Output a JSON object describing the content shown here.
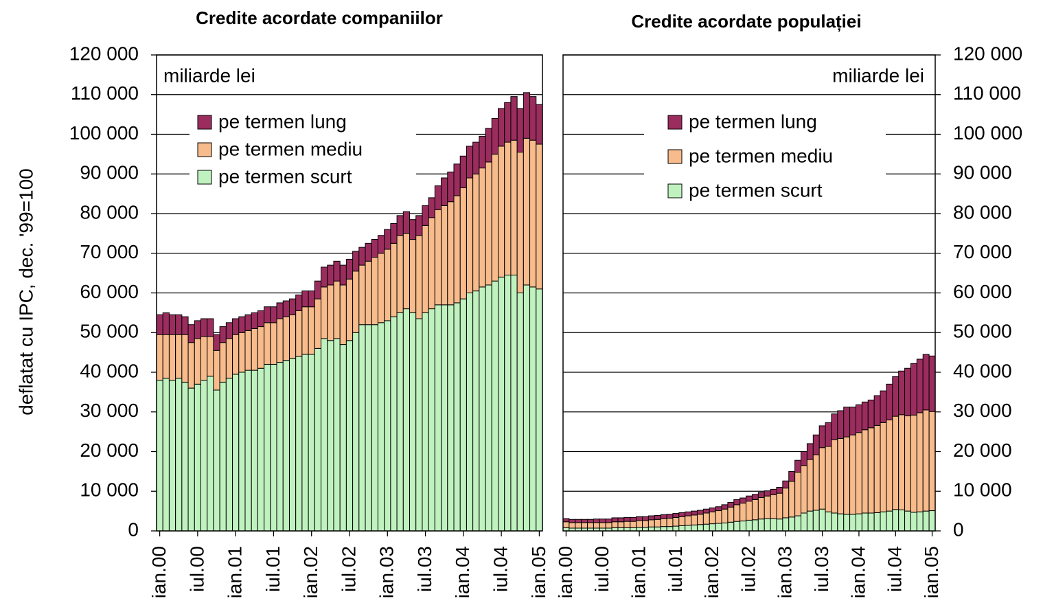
{
  "chart_data": [
    {
      "type": "bar",
      "stacked": true,
      "title": "Credite acordate companiilor",
      "y_axis_label": "deflatat cu IPC, dec. '99=100",
      "annotation": "miliarde lei",
      "axis_side": "left",
      "grid": true,
      "categories": [
        "ian.00",
        null,
        null,
        null,
        null,
        null,
        "iul.00",
        null,
        null,
        null,
        null,
        null,
        "ian.01",
        null,
        null,
        null,
        null,
        null,
        "iul.01",
        null,
        null,
        null,
        null,
        null,
        "ian.02",
        null,
        null,
        null,
        null,
        null,
        "iul.02",
        null,
        null,
        null,
        null,
        null,
        "ian.03",
        null,
        null,
        null,
        null,
        null,
        "iul.03",
        null,
        null,
        null,
        null,
        null,
        "ian.04",
        null,
        null,
        null,
        null,
        null,
        "iul.04",
        null,
        null,
        null,
        null,
        null,
        "ian.05"
      ],
      "ylim": [
        0,
        120000
      ],
      "yticks": [
        0,
        {
          "value": 10000,
          "label": "10 000"
        },
        {
          "value": 20000,
          "label": "20 000"
        },
        {
          "value": 30000,
          "label": "30 000"
        },
        {
          "value": 40000,
          "label": "40 000"
        },
        {
          "value": 50000,
          "label": "50 000"
        },
        {
          "value": 60000,
          "label": "60 000"
        },
        {
          "value": 70000,
          "label": "70 000"
        },
        {
          "value": 80000,
          "label": "80 000"
        },
        {
          "value": 90000,
          "label": "90 000"
        },
        {
          "value": 100000,
          "label": "100 000"
        },
        {
          "value": 110000,
          "label": "110 000"
        },
        {
          "value": 120000,
          "label": "120 000"
        }
      ],
      "series": [
        {
          "name": "pe termen scurt",
          "color": "#bff2bf",
          "values": [
            38000,
            38500,
            38000,
            38500,
            37500,
            36000,
            37000,
            38000,
            39000,
            35500,
            37500,
            38500,
            39500,
            40000,
            40500,
            40500,
            41000,
            42000,
            42000,
            42500,
            43000,
            43500,
            44000,
            44500,
            44500,
            46000,
            48500,
            48000,
            48500,
            47000,
            48000,
            50000,
            52000,
            52000,
            52000,
            52500,
            53000,
            54000,
            55000,
            56000,
            55000,
            53500,
            55000,
            56000,
            57000,
            57000,
            57000,
            57500,
            58500,
            60000,
            60500,
            61500,
            62000,
            63000,
            64000,
            64500,
            64500,
            60000,
            62000,
            61500,
            61000
          ]
        },
        {
          "name": "pe termen mediu",
          "color": "#f7bb8c",
          "values": [
            11500,
            11000,
            11500,
            11000,
            12000,
            11500,
            11500,
            11000,
            10000,
            10000,
            10000,
            10000,
            10000,
            10000,
            10000,
            10500,
            10500,
            10500,
            10500,
            11000,
            11000,
            11000,
            11500,
            12000,
            12000,
            12500,
            13000,
            14000,
            14500,
            15000,
            15500,
            15500,
            15000,
            16000,
            17000,
            17500,
            18000,
            18500,
            19500,
            19000,
            18500,
            21000,
            22000,
            23000,
            24000,
            25000,
            26000,
            27000,
            28000,
            29000,
            29500,
            30000,
            31000,
            32000,
            33000,
            33500,
            34000,
            35500,
            37000,
            37000,
            36500
          ]
        },
        {
          "name": "pe termen lung",
          "color": "#9b2d5e",
          "values": [
            5000,
            5500,
            5000,
            5000,
            4500,
            4500,
            4500,
            4500,
            4500,
            4000,
            4000,
            4000,
            4000,
            4000,
            4000,
            4000,
            4000,
            4000,
            4000,
            4000,
            4000,
            4000,
            4000,
            4000,
            4000,
            4500,
            5000,
            5000,
            5000,
            5000,
            5000,
            5000,
            4500,
            4500,
            4500,
            4500,
            5000,
            5000,
            5000,
            5500,
            5000,
            5000,
            5000,
            5000,
            6000,
            7000,
            7500,
            8000,
            8000,
            8000,
            8000,
            8000,
            8500,
            9000,
            9500,
            10000,
            11000,
            11000,
            11500,
            11000,
            10000
          ]
        }
      ]
    },
    {
      "type": "bar",
      "stacked": true,
      "title": "Credite acordate populației",
      "annotation": "miliarde lei",
      "axis_side": "right",
      "grid": true,
      "categories": [
        "ian.00",
        null,
        null,
        null,
        null,
        null,
        "iul.00",
        null,
        null,
        null,
        null,
        null,
        "ian.01",
        null,
        null,
        null,
        null,
        null,
        "iul.01",
        null,
        null,
        null,
        null,
        null,
        "ian.02",
        null,
        null,
        null,
        null,
        null,
        "iul.02",
        null,
        null,
        null,
        null,
        null,
        "ian.03",
        null,
        null,
        null,
        null,
        null,
        "iul.03",
        null,
        null,
        null,
        null,
        null,
        "ian.04",
        null,
        null,
        null,
        null,
        null,
        "iul.04",
        null,
        null,
        null,
        null,
        null,
        "ian.05"
      ],
      "ylim": [
        0,
        120000
      ],
      "yticks": [
        0,
        {
          "value": 10000,
          "label": "10 000"
        },
        {
          "value": 20000,
          "label": "20 000"
        },
        {
          "value": 30000,
          "label": "30 000"
        },
        {
          "value": 40000,
          "label": "40 000"
        },
        {
          "value": 50000,
          "label": "50 000"
        },
        {
          "value": 60000,
          "label": "60 000"
        },
        {
          "value": 70000,
          "label": "70 000"
        },
        {
          "value": 80000,
          "label": "80 000"
        },
        {
          "value": 90000,
          "label": "90 000"
        },
        {
          "value": 100000,
          "label": "100 000"
        },
        {
          "value": 110000,
          "label": "110 000"
        },
        {
          "value": 120000,
          "label": "120 000"
        }
      ],
      "series": [
        {
          "name": "pe termen scurt",
          "color": "#bff2bf",
          "values": [
            800,
            700,
            700,
            700,
            700,
            700,
            700,
            700,
            800,
            800,
            800,
            800,
            900,
            900,
            1000,
            1000,
            1100,
            1100,
            1200,
            1300,
            1400,
            1500,
            1600,
            1700,
            1800,
            1900,
            2000,
            2200,
            2400,
            2500,
            2700,
            2800,
            3000,
            3100,
            3100,
            3000,
            3300,
            3500,
            3800,
            4500,
            5000,
            5200,
            5500,
            4800,
            4500,
            4300,
            4200,
            4200,
            4300,
            4500,
            4500,
            4600,
            4800,
            5000,
            5400,
            5300,
            5000,
            4700,
            4800,
            5000,
            5100
          ]
        },
        {
          "name": "pe termen mediu",
          "color": "#f7bb8c",
          "values": [
            1500,
            1400,
            1400,
            1400,
            1400,
            1400,
            1400,
            1400,
            1500,
            1500,
            1600,
            1600,
            1700,
            1700,
            1800,
            1900,
            2000,
            2100,
            2200,
            2300,
            2400,
            2500,
            2600,
            2800,
            3000,
            3200,
            3500,
            3800,
            4200,
            4500,
            4800,
            5100,
            5400,
            5700,
            6000,
            6500,
            7500,
            9000,
            11000,
            12000,
            13000,
            14000,
            15500,
            16500,
            18500,
            19000,
            19500,
            20000,
            20500,
            21000,
            21500,
            22000,
            22500,
            23000,
            23500,
            24000,
            24000,
            24500,
            25000,
            25500,
            25000
          ]
        },
        {
          "name": "pe termen lung",
          "color": "#9b2d5e",
          "values": [
            800,
            800,
            800,
            800,
            800,
            900,
            900,
            900,
            1000,
            1000,
            1000,
            1000,
            1000,
            1000,
            1000,
            1000,
            1000,
            1000,
            1000,
            1000,
            1000,
            1000,
            1000,
            1000,
            1000,
            1000,
            1100,
            1200,
            1300,
            1300,
            1300,
            1300,
            1300,
            1300,
            1400,
            1500,
            1800,
            2500,
            3000,
            3500,
            4000,
            5000,
            5500,
            6000,
            6500,
            7000,
            7500,
            7000,
            7000,
            7000,
            7000,
            7500,
            8000,
            9000,
            10000,
            11000,
            12000,
            13000,
            13500,
            14000,
            14000
          ]
        }
      ]
    }
  ]
}
